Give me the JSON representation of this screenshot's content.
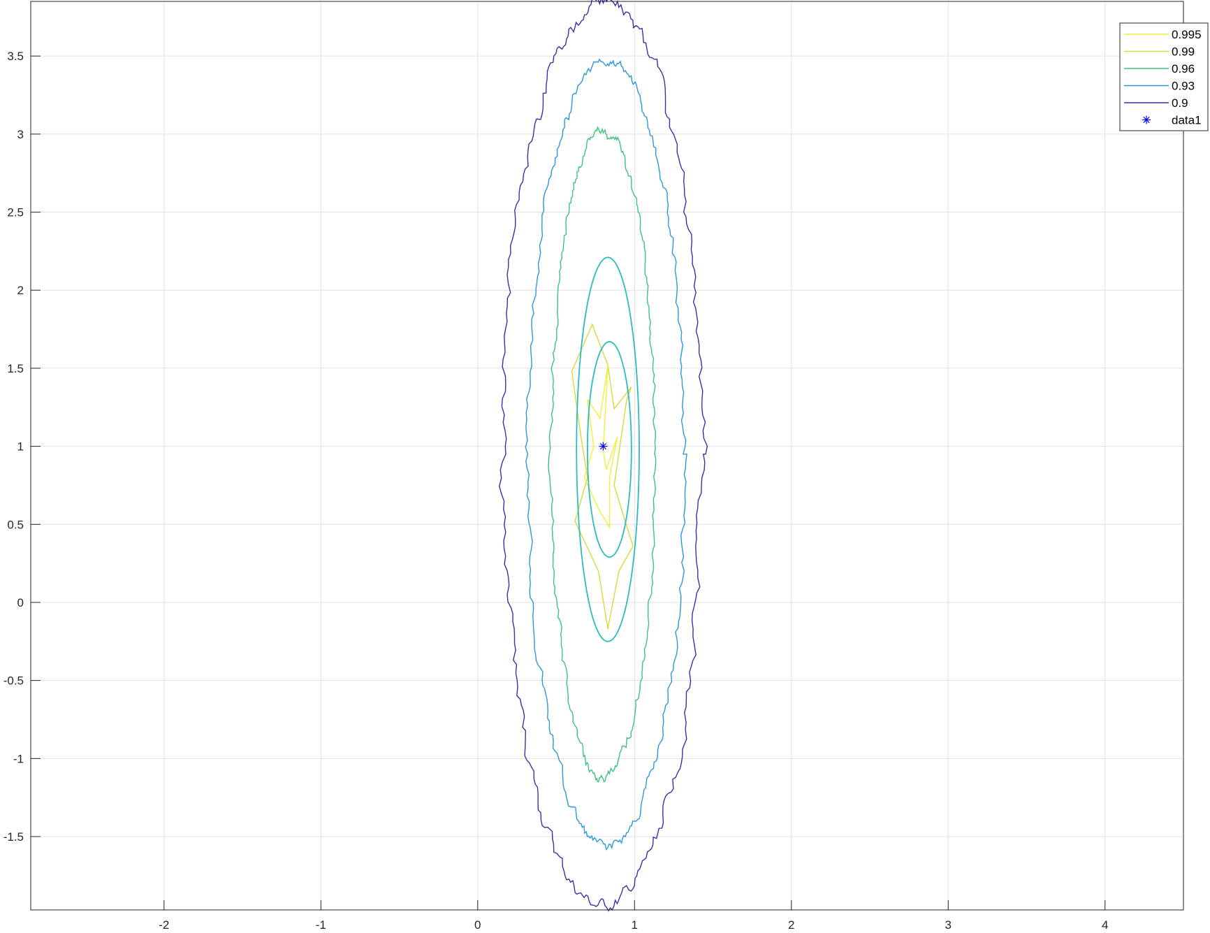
{
  "chart_data": {
    "type": "contour",
    "title": "",
    "xlabel": "",
    "ylabel": "",
    "xlim": [
      -2.85,
      4.5
    ],
    "ylim": [
      -1.97,
      3.85
    ],
    "grid": true,
    "xticks": [
      -2,
      -1,
      0,
      1,
      2,
      3,
      4
    ],
    "xtick_labels": [
      "-2",
      "-1",
      "0",
      "1",
      "2",
      "3",
      "4"
    ],
    "yticks": [
      -1.5,
      -1,
      -0.5,
      0,
      0.5,
      1,
      1.5,
      2,
      2.5,
      3,
      3.5
    ],
    "ytick_labels": [
      "-1.5",
      "-1",
      "-0.5",
      "0",
      "0.5",
      "1",
      "1.5",
      "2",
      "2.5",
      "3",
      "3.5"
    ],
    "legend_position": "top-right",
    "center": {
      "x": 0.8,
      "y": 1.0
    },
    "contours": [
      {
        "name": "0.9",
        "color": "#3b2fa6",
        "shape": "jagged-ellipse",
        "cx": 0.8,
        "cy": 0.95,
        "rx": 0.64,
        "ry": 2.9
      },
      {
        "name": "0.93",
        "color": "#2c97d8",
        "shape": "jagged-ellipse",
        "cx": 0.82,
        "cy": 0.95,
        "rx": 0.5,
        "ry": 2.52
      },
      {
        "name": "0.96",
        "color": "#3ec27c",
        "shape": "jagged-ellipse",
        "cx": 0.8,
        "cy": 0.95,
        "rx": 0.33,
        "ry": 2.08
      },
      {
        "name": "0.99",
        "color": "#d5d93a",
        "shape": "jagged-diamond",
        "points": [
          [
            0.73,
            1.78
          ],
          [
            0.6,
            1.48
          ],
          [
            0.66,
            1.05
          ],
          [
            0.7,
            0.8
          ],
          [
            0.62,
            0.52
          ],
          [
            0.77,
            0.2
          ],
          [
            0.83,
            -0.17
          ],
          [
            0.9,
            0.2
          ],
          [
            0.99,
            0.36
          ],
          [
            0.87,
            0.75
          ],
          [
            0.95,
            1.3
          ],
          [
            0.98,
            1.38
          ],
          [
            0.87,
            1.24
          ],
          [
            0.83,
            1.52
          ]
        ]
      },
      {
        "name": "0.995",
        "color": "#f2ef3c",
        "shape": "jagged-diamond",
        "points": [
          [
            0.83,
            1.52
          ],
          [
            0.78,
            1.18
          ],
          [
            0.7,
            1.3
          ],
          [
            0.74,
            1.0
          ],
          [
            0.68,
            0.8
          ],
          [
            0.77,
            0.6
          ],
          [
            0.84,
            0.48
          ],
          [
            0.84,
            0.8
          ],
          [
            0.89,
            1.06
          ],
          [
            0.82,
            0.85
          ],
          [
            0.8,
            0.97
          ]
        ]
      }
    ],
    "extra_ellipses": [
      {
        "color": "#2bbcc0",
        "cx": 0.83,
        "cy": 0.98,
        "rx": 0.2,
        "ry": 1.23
      },
      {
        "color": "#2bbcc0",
        "cx": 0.84,
        "cy": 0.98,
        "rx": 0.14,
        "ry": 0.69
      }
    ],
    "series": [
      {
        "name": "0.995",
        "color": "#f2ef3c"
      },
      {
        "name": "0.99",
        "color": "#d5d93a"
      },
      {
        "name": "0.96",
        "color": "#3ec27c"
      },
      {
        "name": "0.93",
        "color": "#2c97d8"
      },
      {
        "name": "0.9",
        "color": "#3b2fa6"
      },
      {
        "name": "data1",
        "color": "#0000ff",
        "marker": "*",
        "points": [
          [
            0.8,
            1.0
          ]
        ]
      }
    ]
  }
}
